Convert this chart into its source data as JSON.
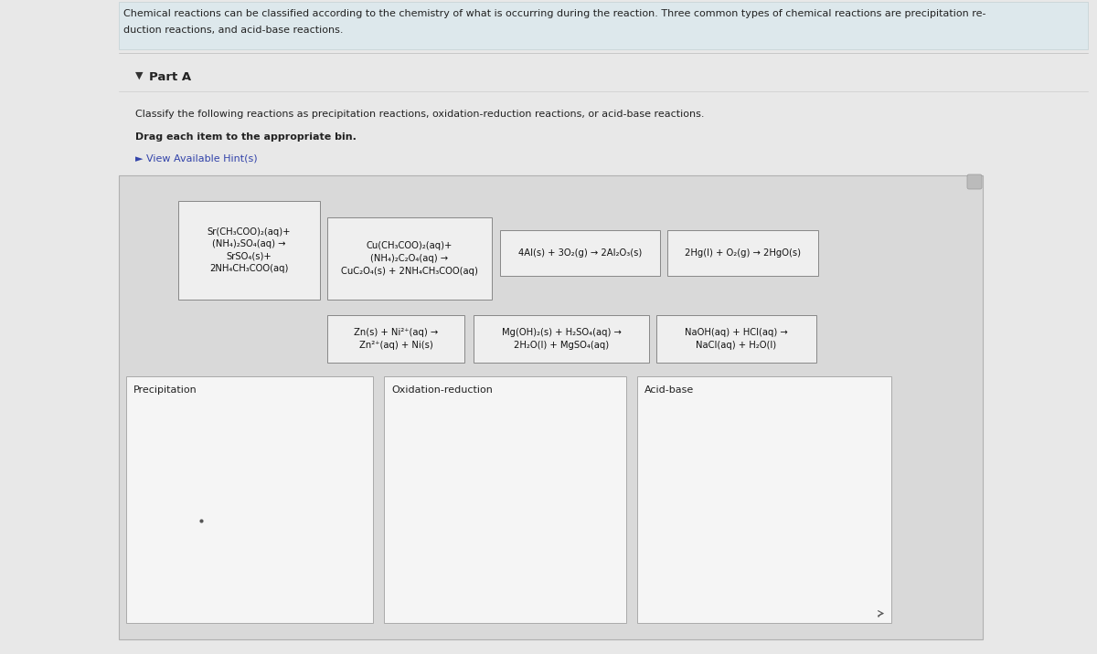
{
  "page_bg": "#e8e8e8",
  "header_bg": "#dde8ec",
  "header_border": "#c0c8cc",
  "content_bg": "#f0f0f0",
  "main_area_bg": "#e0e0e0",
  "card_bg": "#f0f0f0",
  "card_border": "#999999",
  "bin_bg": "#f8f8f8",
  "bin_border": "#aaaaaa",
  "header_line1": "Chemical reactions can be classified according to the chemistry of what is occurring during the reaction. Three common types of chemical reactions are precipitation re-",
  "header_line2": "duction reactions, and acid-base reactions.",
  "part_a": "Part A",
  "instructions": "Classify the following reactions as precipitation reactions, oxidation-reduction reactions, or acid-base reactions.",
  "drag_text": "Drag each item to the appropriate bin.",
  "hint_text": "► View Available Hint(s)",
  "reactions": [
    "Sr(CH₃COO)₂(aq)+\n(NH₄)₂SO₄(aq) →\nSrSO₄(s)+\n2NH₄CH₃COO(aq)",
    "Cu(CH₃COO)₂(aq)+\n(NH₄)₂C₂O₄(aq) →\nCuC₂O₄(s) + 2NH₄CH₃COO(aq)",
    "4Al(s) + 3O₂(g) → 2Al₂O₃(s)",
    "2Hg(l) + O₂(g) → 2HgO(s)",
    "Zn(s) + Ni²⁺(aq) →\nZn²⁺(aq) + Ni(s)",
    "Mg(OH)₂(s) + H₂SO₄(aq) →\n2H₂O(l) + MgSO₄(aq)",
    "NaOH(aq) + HCl(aq) →\nNaCl(aq) + H₂O(l)"
  ],
  "bin_labels": [
    "Precipitation",
    "Oxidation-reduction",
    "Acid-base"
  ],
  "header_fontsize": 8.0,
  "parta_fontsize": 9.5,
  "instr_fontsize": 8.0,
  "drag_fontsize": 8.0,
  "hint_fontsize": 8.0,
  "reaction_fontsize": 7.2,
  "bin_label_fontsize": 8.0
}
